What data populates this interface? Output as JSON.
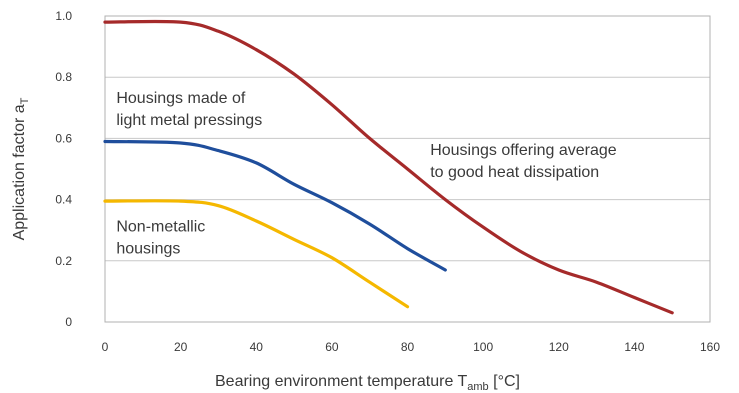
{
  "chart_data": {
    "type": "line",
    "x_title": {
      "main": "Bearing environment temperature T",
      "sub": "amb",
      "unit": " [°C]"
    },
    "y_title": {
      "main": "Application factor a",
      "sub": "T"
    },
    "xlim": [
      0,
      160
    ],
    "ylim": [
      0,
      1.0
    ],
    "x_ticks": [
      "0",
      "20",
      "40",
      "60",
      "80",
      "100",
      "120",
      "140",
      "160"
    ],
    "y_ticks": [
      "0",
      "0.2",
      "0.4",
      "0.6",
      "0.8",
      "1.0"
    ],
    "grid": "horizontal",
    "series": [
      {
        "color": "#a52a2a",
        "points": [
          [
            0,
            0.98
          ],
          [
            20,
            0.98
          ],
          [
            30,
            0.95
          ],
          [
            40,
            0.89
          ],
          [
            50,
            0.81
          ],
          [
            60,
            0.71
          ],
          [
            70,
            0.6
          ],
          [
            80,
            0.5
          ],
          [
            90,
            0.4
          ],
          [
            100,
            0.31
          ],
          [
            110,
            0.23
          ],
          [
            120,
            0.17
          ],
          [
            130,
            0.13
          ],
          [
            140,
            0.08
          ],
          [
            150,
            0.03
          ]
        ]
      },
      {
        "color": "#1f4e9c",
        "points": [
          [
            0,
            0.59
          ],
          [
            20,
            0.585
          ],
          [
            30,
            0.56
          ],
          [
            40,
            0.52
          ],
          [
            50,
            0.45
          ],
          [
            60,
            0.39
          ],
          [
            70,
            0.32
          ],
          [
            80,
            0.24
          ],
          [
            90,
            0.17
          ]
        ]
      },
      {
        "color": "#f5b800",
        "points": [
          [
            0,
            0.395
          ],
          [
            20,
            0.395
          ],
          [
            30,
            0.38
          ],
          [
            40,
            0.33
          ],
          [
            50,
            0.27
          ],
          [
            60,
            0.21
          ],
          [
            70,
            0.13
          ],
          [
            80,
            0.05
          ]
        ]
      }
    ],
    "annotations": [
      {
        "lines": [
          "Housings made of",
          "light metal pressings"
        ],
        "x": 3,
        "y": 0.715
      },
      {
        "lines": [
          "Housings offering average",
          "to good heat dissipation"
        ],
        "x": 86,
        "y": 0.545
      },
      {
        "lines": [
          "Non-metallic",
          "housings"
        ],
        "x": 3,
        "y": 0.295
      }
    ]
  }
}
